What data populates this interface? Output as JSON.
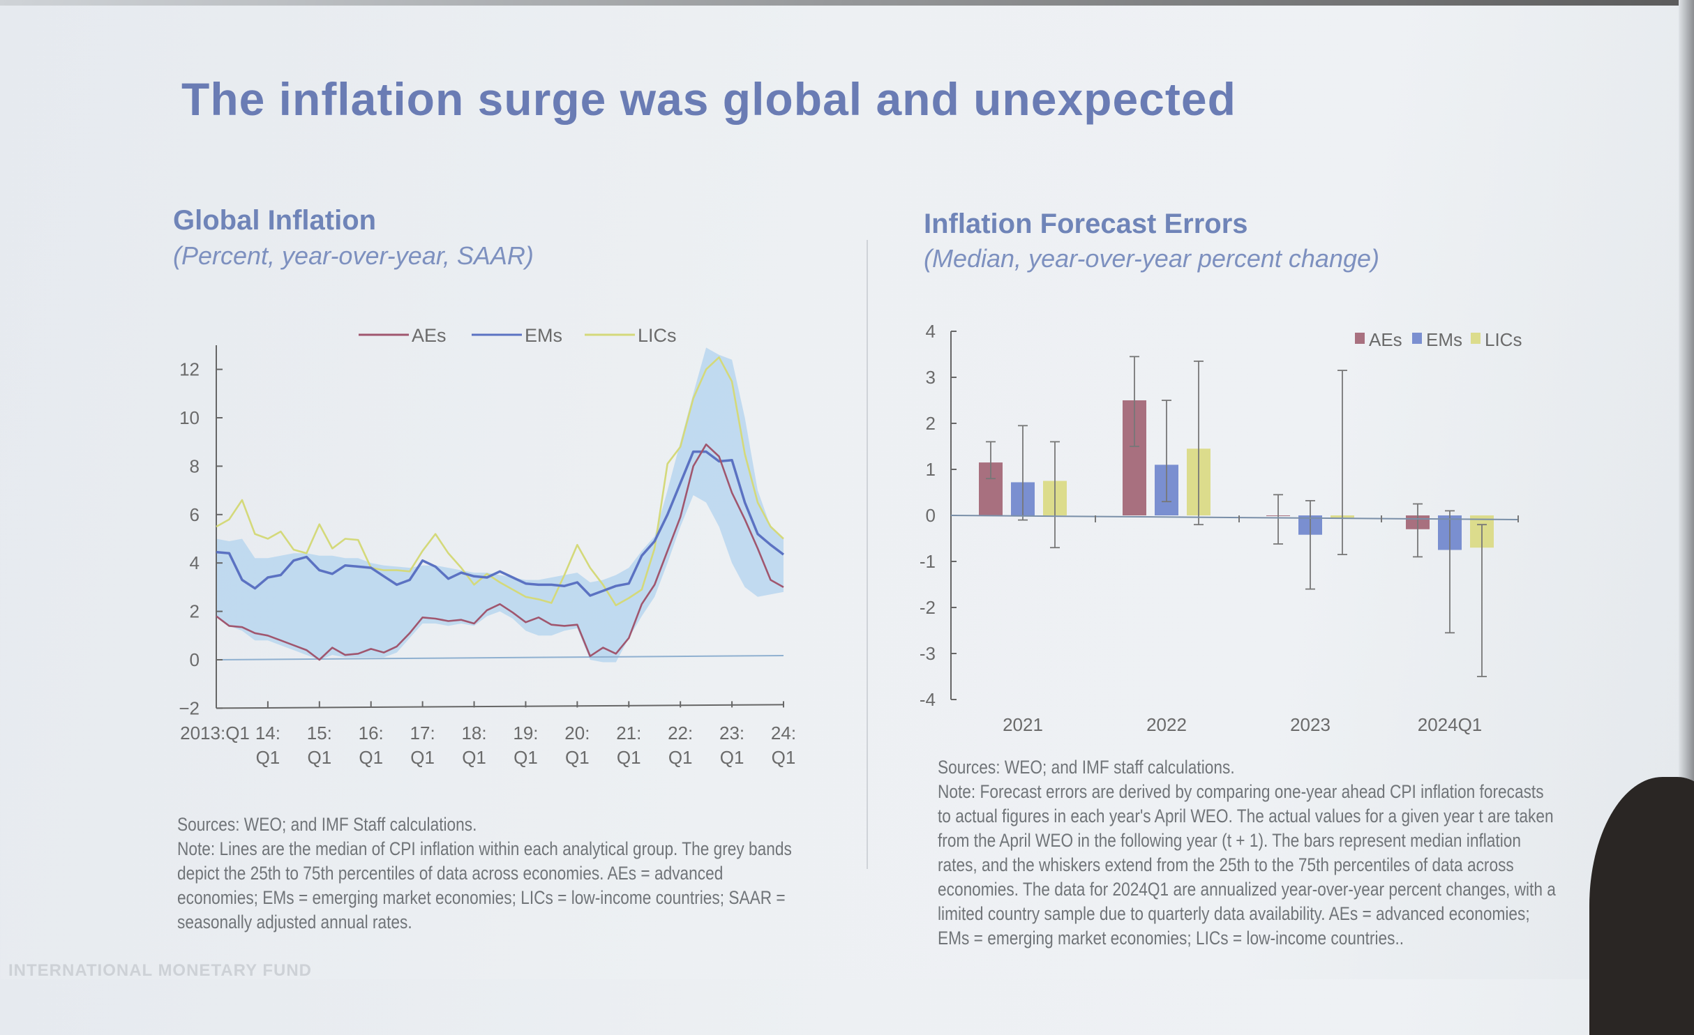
{
  "slide": {
    "title": "The inflation surge was global and unexpected",
    "footer_watermark": "INTERNATIONAL MONETARY FUND"
  },
  "left_panel": {
    "title": "Global Inflation",
    "subtitle": "(Percent, year-over-year, SAAR)",
    "notes": [
      "Sources: WEO; and IMF Staff calculations.",
      "Note: Lines are the median of CPI inflation within each analytical group. The grey bands",
      "depict the 25th to 75th percentiles of data across economies. AEs = advanced",
      "economies; EMs = emerging market economies; LICs = low-income countries; SAAR =",
      "seasonally adjusted annual rates."
    ]
  },
  "right_panel": {
    "title": "Inflation Forecast Errors",
    "subtitle": "(Median, year-over-year percent change)",
    "notes": [
      "Sources: WEO; and IMF staff calculations.",
      "Note: Forecast errors are derived by comparing one-year ahead CPI inflation forecasts",
      "to actual figures in each year's April WEO. The actual values for a given year t are taken",
      "from the April WEO in the following year (t + 1). The bars represent median inflation",
      "rates, and the whiskers extend from the 25th to the 75th percentiles of data across",
      "economies. The data for 2024Q1 are annualized year-over-year percent changes, with a",
      "limited country sample due to quarterly data availability. AEs = advanced economies;",
      "EMs = emerging market economies; LICs = low-income countries.."
    ]
  },
  "chart_data": [
    {
      "type": "line",
      "title": "Global Inflation",
      "subtitle": "(Percent, year-over-year, SAAR)",
      "x_start": "2013:Q1",
      "x_end": "2024:Q1",
      "frequency": "quarterly",
      "ylim": [
        -2,
        13
      ],
      "yticks": [
        -2,
        0,
        2,
        4,
        6,
        8,
        10,
        12
      ],
      "xtick_labels": [
        [
          "2013:Q1",
          ""
        ],
        [
          "14:",
          "Q1"
        ],
        [
          "15:",
          "Q1"
        ],
        [
          "16:",
          "Q1"
        ],
        [
          "17:",
          "Q1"
        ],
        [
          "18:",
          "Q1"
        ],
        [
          "19:",
          "Q1"
        ],
        [
          "20:",
          "Q1"
        ],
        [
          "21:",
          "Q1"
        ],
        [
          "22:",
          "Q1"
        ],
        [
          "23:",
          "Q1"
        ],
        [
          "24:",
          "Q1"
        ]
      ],
      "legend_position": "top-center",
      "grid": false,
      "series": [
        {
          "name": "AEs",
          "color": "#a0566e",
          "values": [
            1.8,
            1.4,
            1.35,
            1.1,
            1.0,
            0.8,
            0.6,
            0.4,
            0.0,
            0.5,
            0.2,
            0.25,
            0.45,
            0.3,
            0.55,
            1.1,
            1.75,
            1.7,
            1.6,
            1.65,
            1.5,
            2.05,
            2.3,
            1.95,
            1.55,
            1.75,
            1.45,
            1.4,
            1.45,
            0.15,
            0.5,
            0.25,
            0.9,
            2.3,
            3.1,
            4.5,
            5.9,
            8.0,
            8.9,
            8.4,
            6.9,
            5.8,
            4.6,
            3.3,
            3.0
          ]
        },
        {
          "name": "EMs",
          "color": "#5b72c2",
          "values": [
            4.45,
            4.4,
            3.3,
            2.95,
            3.4,
            3.5,
            4.1,
            4.25,
            3.7,
            3.55,
            3.9,
            3.85,
            3.8,
            3.45,
            3.1,
            3.3,
            4.1,
            3.85,
            3.35,
            3.6,
            3.45,
            3.4,
            3.65,
            3.4,
            3.15,
            3.1,
            3.1,
            3.05,
            3.2,
            2.65,
            2.85,
            3.05,
            3.15,
            4.3,
            4.9,
            6.0,
            7.3,
            8.6,
            8.6,
            8.2,
            8.25,
            6.5,
            5.2,
            4.75,
            4.35
          ]
        },
        {
          "name": "LICs",
          "color": "#d4d97a",
          "values": [
            5.5,
            5.8,
            6.6,
            5.2,
            5.0,
            5.3,
            4.55,
            4.4,
            5.6,
            4.6,
            5.0,
            4.95,
            3.8,
            3.7,
            3.7,
            3.65,
            4.5,
            5.2,
            4.4,
            3.8,
            3.1,
            3.55,
            3.2,
            2.9,
            2.6,
            2.5,
            2.35,
            3.5,
            4.75,
            3.8,
            3.1,
            2.25,
            2.55,
            2.9,
            4.6,
            8.1,
            8.8,
            10.8,
            12.0,
            12.5,
            11.5,
            8.5,
            6.5,
            5.5,
            5.0
          ]
        }
      ],
      "band": {
        "description_from_note": "25th to 75th percentiles",
        "color": "#b9d6ee",
        "upper": [
          5.0,
          4.9,
          5.0,
          4.2,
          4.2,
          4.3,
          4.4,
          4.4,
          4.3,
          4.3,
          4.2,
          4.2,
          4.0,
          3.9,
          3.85,
          3.8,
          3.9,
          3.9,
          3.8,
          3.7,
          3.6,
          3.6,
          3.5,
          3.4,
          3.3,
          3.3,
          3.4,
          3.5,
          3.6,
          3.2,
          3.3,
          3.5,
          3.8,
          4.5,
          5.1,
          7.0,
          9.0,
          11.0,
          12.9,
          12.6,
          12.4,
          10.0,
          7.0,
          5.5,
          5.0
        ],
        "lower": [
          1.8,
          1.4,
          1.2,
          0.8,
          0.8,
          0.6,
          0.4,
          0.2,
          0.0,
          0.2,
          0.1,
          0.1,
          0.1,
          0.1,
          0.3,
          0.9,
          1.5,
          1.5,
          1.4,
          1.5,
          1.4,
          1.8,
          2.0,
          1.7,
          1.2,
          1.0,
          1.0,
          1.2,
          1.3,
          0.0,
          -0.1,
          -0.1,
          0.9,
          1.8,
          2.6,
          4.0,
          5.5,
          6.8,
          6.5,
          5.5,
          4.0,
          3.0,
          2.6,
          2.7,
          2.8
        ]
      }
    },
    {
      "type": "bar",
      "title": "Inflation Forecast Errors",
      "subtitle": "(Median, year-over-year percent change)",
      "categories": [
        "2021",
        "2022",
        "2023",
        "2024Q1"
      ],
      "ylim": [
        -4,
        4
      ],
      "yticks": [
        -4,
        -3,
        -2,
        -1,
        0,
        1,
        2,
        3,
        4
      ],
      "legend_position": "top-right",
      "grid": false,
      "series": [
        {
          "name": "AEs",
          "color": "#a8707f",
          "values": [
            1.15,
            2.5,
            0.0,
            -0.3
          ],
          "whisker_low": [
            0.8,
            1.5,
            -0.62,
            -0.9
          ],
          "whisker_high": [
            1.6,
            3.45,
            0.45,
            0.25
          ]
        },
        {
          "name": "EMs",
          "color": "#7a8fd0",
          "values": [
            0.72,
            1.1,
            -0.42,
            -0.75
          ],
          "whisker_low": [
            -0.1,
            0.3,
            -1.6,
            -2.55
          ],
          "whisker_high": [
            1.95,
            2.5,
            0.32,
            0.1
          ]
        },
        {
          "name": "LICs",
          "color": "#dcdc8c",
          "values": [
            0.75,
            1.45,
            -0.05,
            -0.7
          ],
          "whisker_low": [
            -0.7,
            -0.2,
            -0.85,
            -3.5
          ],
          "whisker_high": [
            1.6,
            3.35,
            3.15,
            -0.2
          ]
        }
      ]
    }
  ]
}
